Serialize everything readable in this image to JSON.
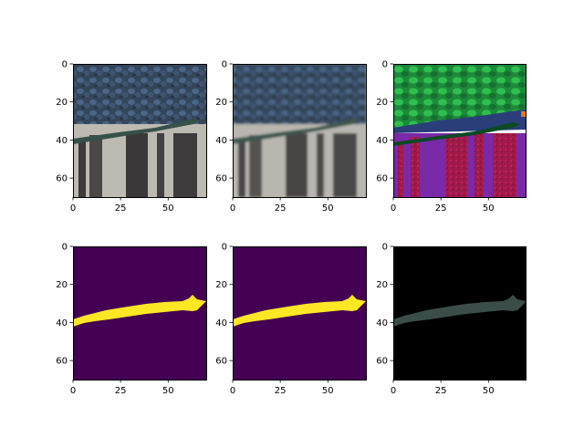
{
  "figure": {
    "panels": [
      {
        "id": "rgb-original",
        "kind": "photo",
        "xticks": [
          "0",
          "25",
          "50"
        ],
        "yticks": [
          "0",
          "20",
          "40",
          "60"
        ]
      },
      {
        "id": "rgb-blurred",
        "kind": "photo-blurred",
        "xticks": [
          "0",
          "25",
          "50"
        ],
        "yticks": [
          "0",
          "20",
          "40",
          "60"
        ]
      },
      {
        "id": "false-color",
        "kind": "false-color",
        "xticks": [
          "0",
          "25",
          "50"
        ],
        "yticks": [
          "0",
          "20",
          "40",
          "60"
        ]
      },
      {
        "id": "mask-a",
        "kind": "mask",
        "xticks": [
          "0",
          "25",
          "50"
        ],
        "yticks": [
          "0",
          "20",
          "40",
          "60"
        ]
      },
      {
        "id": "mask-b",
        "kind": "mask",
        "xticks": [
          "0",
          "25",
          "50"
        ],
        "yticks": [
          "0",
          "20",
          "40",
          "60"
        ]
      },
      {
        "id": "masked-overlay",
        "kind": "masked-image",
        "xticks": [
          "0",
          "25",
          "50"
        ],
        "yticks": [
          "0",
          "20",
          "40",
          "60"
        ]
      }
    ],
    "colors": {
      "mask_background": "#440154",
      "mask_foreground": "#fde725",
      "masked_background": "#000000",
      "masked_object": "#3b4d48"
    }
  }
}
